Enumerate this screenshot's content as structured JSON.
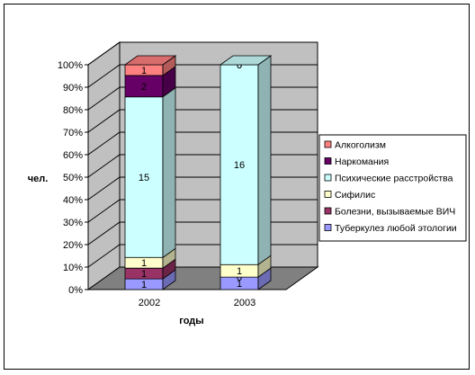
{
  "chart_data": {
    "type": "bar",
    "stacked": "percent",
    "three_d": true,
    "categories": [
      "2002",
      "2003"
    ],
    "series": [
      {
        "name": "Туберкулез любой этологии",
        "values": [
          1,
          1
        ],
        "color": "#9999ff"
      },
      {
        "name": "Болезни, вызываемые ВИЧ",
        "values": [
          1,
          0
        ],
        "color": "#993366"
      },
      {
        "name": "Сифилис",
        "values": [
          1,
          1
        ],
        "color": "#ffffcc"
      },
      {
        "name": "Психические расстройства",
        "values": [
          15,
          16
        ],
        "color": "#ccffff"
      },
      {
        "name": "Наркомания",
        "values": [
          2,
          0
        ],
        "color": "#660066"
      },
      {
        "name": "Алкоголизм",
        "values": [
          1,
          0
        ],
        "color": "#ff8080"
      }
    ],
    "yticks": [
      "0%",
      "10%",
      "20%",
      "30%",
      "40%",
      "50%",
      "60%",
      "70%",
      "80%",
      "90%",
      "100%"
    ],
    "ylim": [
      0,
      100
    ],
    "ylabel": "чел.",
    "xlabel": "годы",
    "grid": true,
    "legend_position": "right",
    "wall_color": "#c0c0c0",
    "floor_color": "#808080"
  }
}
